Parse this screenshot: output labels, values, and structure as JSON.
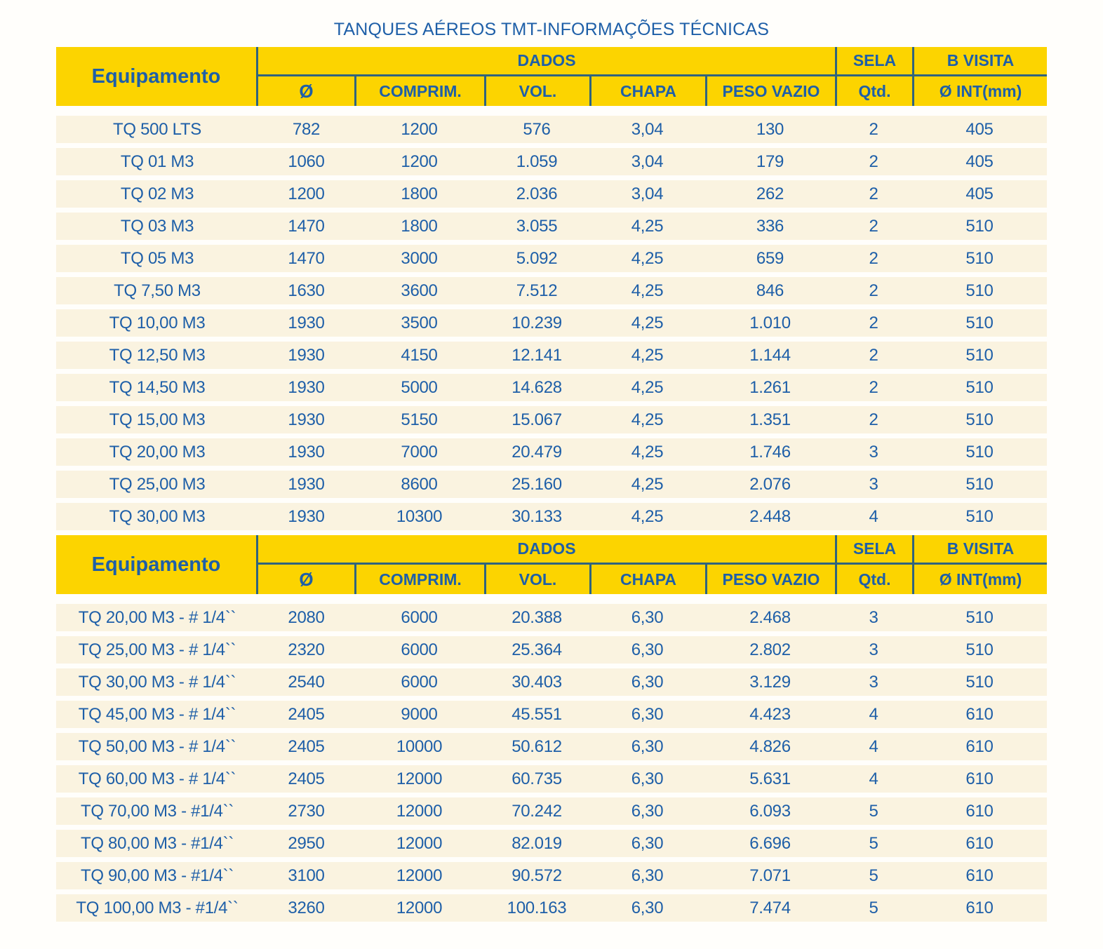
{
  "title": "TANQUES AÉREOS TMT-INFORMAÇÕES TÉCNICAS",
  "colors": {
    "header_yellow": "#fcd400",
    "text_blue": "#1e5fa8",
    "grid_line": "#2f647e",
    "row_cream": "#faf3e0",
    "page_bg": "#fffefb"
  },
  "header": {
    "equipment": "Equipamento",
    "dados": "DADOS",
    "sela": "SELA",
    "b_visita": "B VISITA",
    "sub": {
      "diameter": "Ø",
      "comprim": "COMPRIM.",
      "vol": "VOL.",
      "chapa": "CHAPA",
      "peso_vazio": "PESO VAZIO",
      "qtd": "Qtd.",
      "o_int": "Ø INT(mm)"
    }
  },
  "tables": [
    {
      "rows": [
        [
          "TQ 500 LTS",
          "782",
          "1200",
          "576",
          "3,04",
          "130",
          "2",
          "405"
        ],
        [
          "TQ 01 M3",
          "1060",
          "1200",
          "1.059",
          "3,04",
          "179",
          "2",
          "405"
        ],
        [
          "TQ 02 M3",
          "1200",
          "1800",
          "2.036",
          "3,04",
          "262",
          "2",
          "405"
        ],
        [
          "TQ 03 M3",
          "1470",
          "1800",
          "3.055",
          "4,25",
          "336",
          "2",
          "510"
        ],
        [
          "TQ 05 M3",
          "1470",
          "3000",
          "5.092",
          "4,25",
          "659",
          "2",
          "510"
        ],
        [
          "TQ 7,50 M3",
          "1630",
          "3600",
          "7.512",
          "4,25",
          "846",
          "2",
          "510"
        ],
        [
          "TQ 10,00 M3",
          "1930",
          "3500",
          "10.239",
          "4,25",
          "1.010",
          "2",
          "510"
        ],
        [
          "TQ 12,50 M3",
          "1930",
          "4150",
          "12.141",
          "4,25",
          "1.144",
          "2",
          "510"
        ],
        [
          "TQ 14,50 M3",
          "1930",
          "5000",
          "14.628",
          "4,25",
          "1.261",
          "2",
          "510"
        ],
        [
          "TQ 15,00 M3",
          "1930",
          "5150",
          "15.067",
          "4,25",
          "1.351",
          "2",
          "510"
        ],
        [
          "TQ 20,00 M3",
          "1930",
          "7000",
          "20.479",
          "4,25",
          "1.746",
          "3",
          "510"
        ],
        [
          "TQ 25,00 M3",
          "1930",
          "8600",
          "25.160",
          "4,25",
          "2.076",
          "3",
          "510"
        ],
        [
          "TQ 30,00 M3",
          "1930",
          "10300",
          "30.133",
          "4,25",
          "2.448",
          "4",
          "510"
        ]
      ]
    },
    {
      "rows": [
        [
          "TQ 20,00 M3 - # 1/4``",
          "2080",
          "6000",
          "20.388",
          "6,30",
          "2.468",
          "3",
          "510"
        ],
        [
          "TQ 25,00 M3 - # 1/4``",
          "2320",
          "6000",
          "25.364",
          "6,30",
          "2.802",
          "3",
          "510"
        ],
        [
          "TQ 30,00 M3 - # 1/4``",
          "2540",
          "6000",
          "30.403",
          "6,30",
          "3.129",
          "3",
          "510"
        ],
        [
          "TQ 45,00 M3 - # 1/4``",
          "2405",
          "9000",
          "45.551",
          "6,30",
          "4.423",
          "4",
          "610"
        ],
        [
          "TQ 50,00 M3 - # 1/4``",
          "2405",
          "10000",
          "50.612",
          "6,30",
          "4.826",
          "4",
          "610"
        ],
        [
          "TQ 60,00 M3 - # 1/4``",
          "2405",
          "12000",
          "60.735",
          "6,30",
          "5.631",
          "4",
          "610"
        ],
        [
          "TQ 70,00 M3 - #1/4``",
          "2730",
          "12000",
          "70.242",
          "6,30",
          "6.093",
          "5",
          "610"
        ],
        [
          "TQ 80,00 M3 - #1/4``",
          "2950",
          "12000",
          "82.019",
          "6,30",
          "6.696",
          "5",
          "610"
        ],
        [
          "TQ 90,00 M3 - #1/4``",
          "3100",
          "12000",
          "90.572",
          "6,30",
          "7.071",
          "5",
          "610"
        ],
        [
          "TQ 100,00 M3 - #1/4``",
          "3260",
          "12000",
          "100.163",
          "6,30",
          "7.474",
          "5",
          "610"
        ]
      ]
    }
  ]
}
